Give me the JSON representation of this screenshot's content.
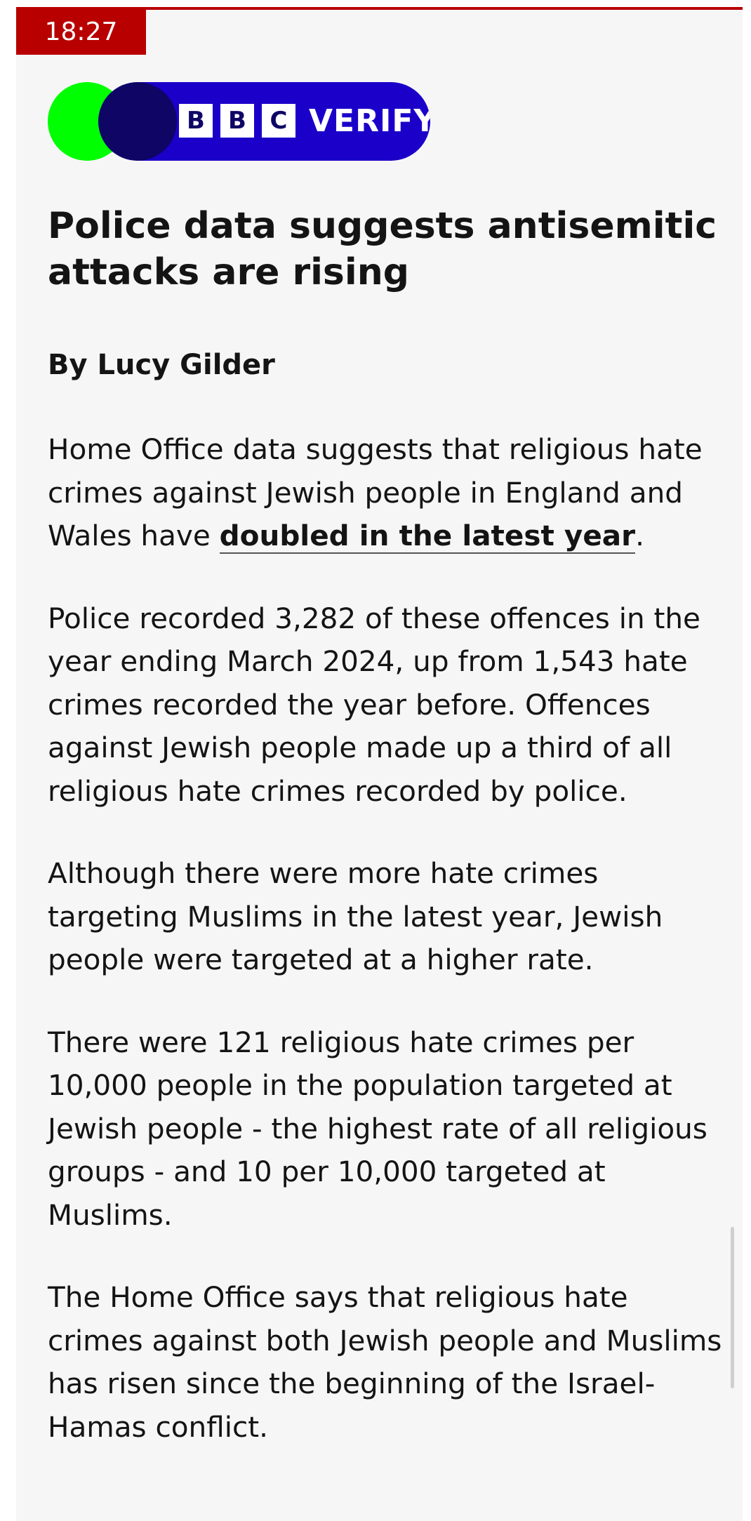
{
  "status_bar": {
    "time": "18:27"
  },
  "brand": {
    "logo_letters": [
      "B",
      "B",
      "C"
    ],
    "logo_word": "VERIFY",
    "dot_color": "#00ff00",
    "pill_color": "#1b00c9",
    "accent_color": "#b80000"
  },
  "article": {
    "headline": "Police data suggests antisemitic attacks are rising",
    "byline": "By Lucy Gilder",
    "para1_before": "Home Office data suggests that religious hate crimes against Jewish people in England and Wales have ",
    "para1_link": "doubled in the latest year",
    "para1_after": ".",
    "para2": "Police recorded 3,282 of these offences in the year ending March 2024, up from 1,543 hate crimes recorded the year before. Offences against Jewish people made up a third of all religious hate crimes recorded by police.",
    "para3": "Although there were more hate crimes targeting Muslims in the latest year, Jewish people were targeted at a higher rate.",
    "para4": "There were 121 religious hate crimes per 10,000 people in the population targeted at Jewish people - the highest rate of all religious groups - and 10 per 10,000 targeted at Muslims.",
    "para5": "The Home Office says that religious hate crimes against both Jewish people and Muslims has risen since the beginning of the Israel-Hamas conflict."
  }
}
